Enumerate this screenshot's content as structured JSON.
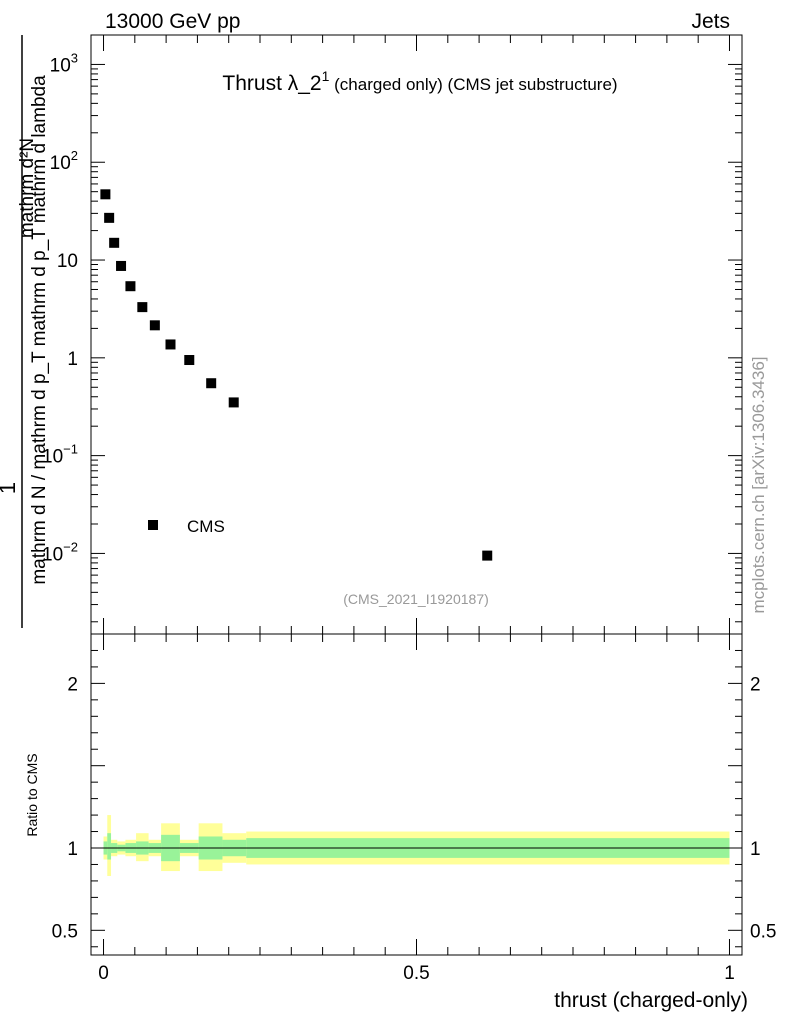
{
  "header": {
    "left": "13000 GeV pp",
    "right": "Jets"
  },
  "side_label": "mcplots.cern.ch [arXiv:1306.3436]",
  "chart_data": [
    {
      "type": "scatter",
      "title": {
        "main": "Thrust λ_2",
        "sup": "1",
        "rest": " (charged only) (CMS jet substructure)"
      },
      "analysis_tag": "(CMS_2021_I1920187)",
      "ylabel": {
        "num": "1",
        "den": "mathrm d N / mathrm d p_T mathrm d p_T mathrm d lambda",
        "den_num": "mathrm d²N"
      },
      "yscale": "log",
      "ylim": [
        0.0015,
        2000
      ],
      "xlim": [
        -0.02,
        1.02
      ],
      "y_ticks": [
        {
          "value": 1000,
          "base": "10",
          "exp": "3"
        },
        {
          "value": 100,
          "base": "10",
          "exp": "2"
        },
        {
          "value": 10,
          "label": "10"
        },
        {
          "value": 1,
          "label": "1"
        },
        {
          "value": 0.1,
          "base": "10",
          "exp": "−1"
        },
        {
          "value": 0.01,
          "base": "10",
          "exp": "−2"
        }
      ],
      "legend": {
        "position": "bottom-left",
        "entries": [
          "CMS"
        ]
      },
      "series": [
        {
          "name": "CMS",
          "x": [
            0.003,
            0.009,
            0.017,
            0.028,
            0.043,
            0.062,
            0.082,
            0.107,
            0.137,
            0.172,
            0.208,
            0.613
          ],
          "y": [
            47,
            27,
            15,
            8.7,
            5.4,
            3.3,
            2.15,
            1.37,
            0.95,
            0.55,
            0.35,
            0.0095
          ]
        }
      ]
    },
    {
      "type": "ratio",
      "ylabel": "Ratio to CMS",
      "xlabel": "thrust (charged-only)",
      "ylim": [
        0.35,
        2.3
      ],
      "y_ticks": [
        {
          "value": 2,
          "label": "2"
        },
        {
          "value": 1,
          "label": "1"
        },
        {
          "value": 0.5,
          "label": "0.5"
        }
      ],
      "x_ticks": [
        {
          "value": 0,
          "label": "0"
        },
        {
          "value": 0.5,
          "label": "0.5"
        },
        {
          "value": 1,
          "label": "1"
        }
      ],
      "bands": [
        {
          "x0": 0.0,
          "x1": 0.006,
          "inner": [
            0.96,
            1.04
          ],
          "outer": [
            0.93,
            1.07
          ]
        },
        {
          "x0": 0.006,
          "x1": 0.012,
          "inner": [
            0.93,
            1.09
          ],
          "outer": [
            0.83,
            1.2
          ]
        },
        {
          "x0": 0.012,
          "x1": 0.022,
          "inner": [
            0.97,
            1.03
          ],
          "outer": [
            0.95,
            1.05
          ]
        },
        {
          "x0": 0.022,
          "x1": 0.035,
          "inner": [
            0.98,
            1.02
          ],
          "outer": [
            0.96,
            1.04
          ]
        },
        {
          "x0": 0.035,
          "x1": 0.052,
          "inner": [
            0.97,
            1.03
          ],
          "outer": [
            0.95,
            1.05
          ]
        },
        {
          "x0": 0.052,
          "x1": 0.072,
          "inner": [
            0.96,
            1.04
          ],
          "outer": [
            0.92,
            1.09
          ]
        },
        {
          "x0": 0.072,
          "x1": 0.092,
          "inner": [
            0.97,
            1.03
          ],
          "outer": [
            0.95,
            1.05
          ]
        },
        {
          "x0": 0.092,
          "x1": 0.122,
          "inner": [
            0.92,
            1.08
          ],
          "outer": [
            0.86,
            1.15
          ]
        },
        {
          "x0": 0.122,
          "x1": 0.152,
          "inner": [
            0.97,
            1.03
          ],
          "outer": [
            0.95,
            1.05
          ]
        },
        {
          "x0": 0.152,
          "x1": 0.19,
          "inner": [
            0.93,
            1.07
          ],
          "outer": [
            0.86,
            1.15
          ]
        },
        {
          "x0": 0.19,
          "x1": 0.228,
          "inner": [
            0.95,
            1.05
          ],
          "outer": [
            0.91,
            1.09
          ]
        },
        {
          "x0": 0.228,
          "x1": 1.0,
          "inner": [
            0.94,
            1.06
          ],
          "outer": [
            0.9,
            1.1
          ]
        }
      ]
    }
  ],
  "colors": {
    "band_inner": "#99f399",
    "band_outer": "#ffff99",
    "marker": "#000000"
  }
}
